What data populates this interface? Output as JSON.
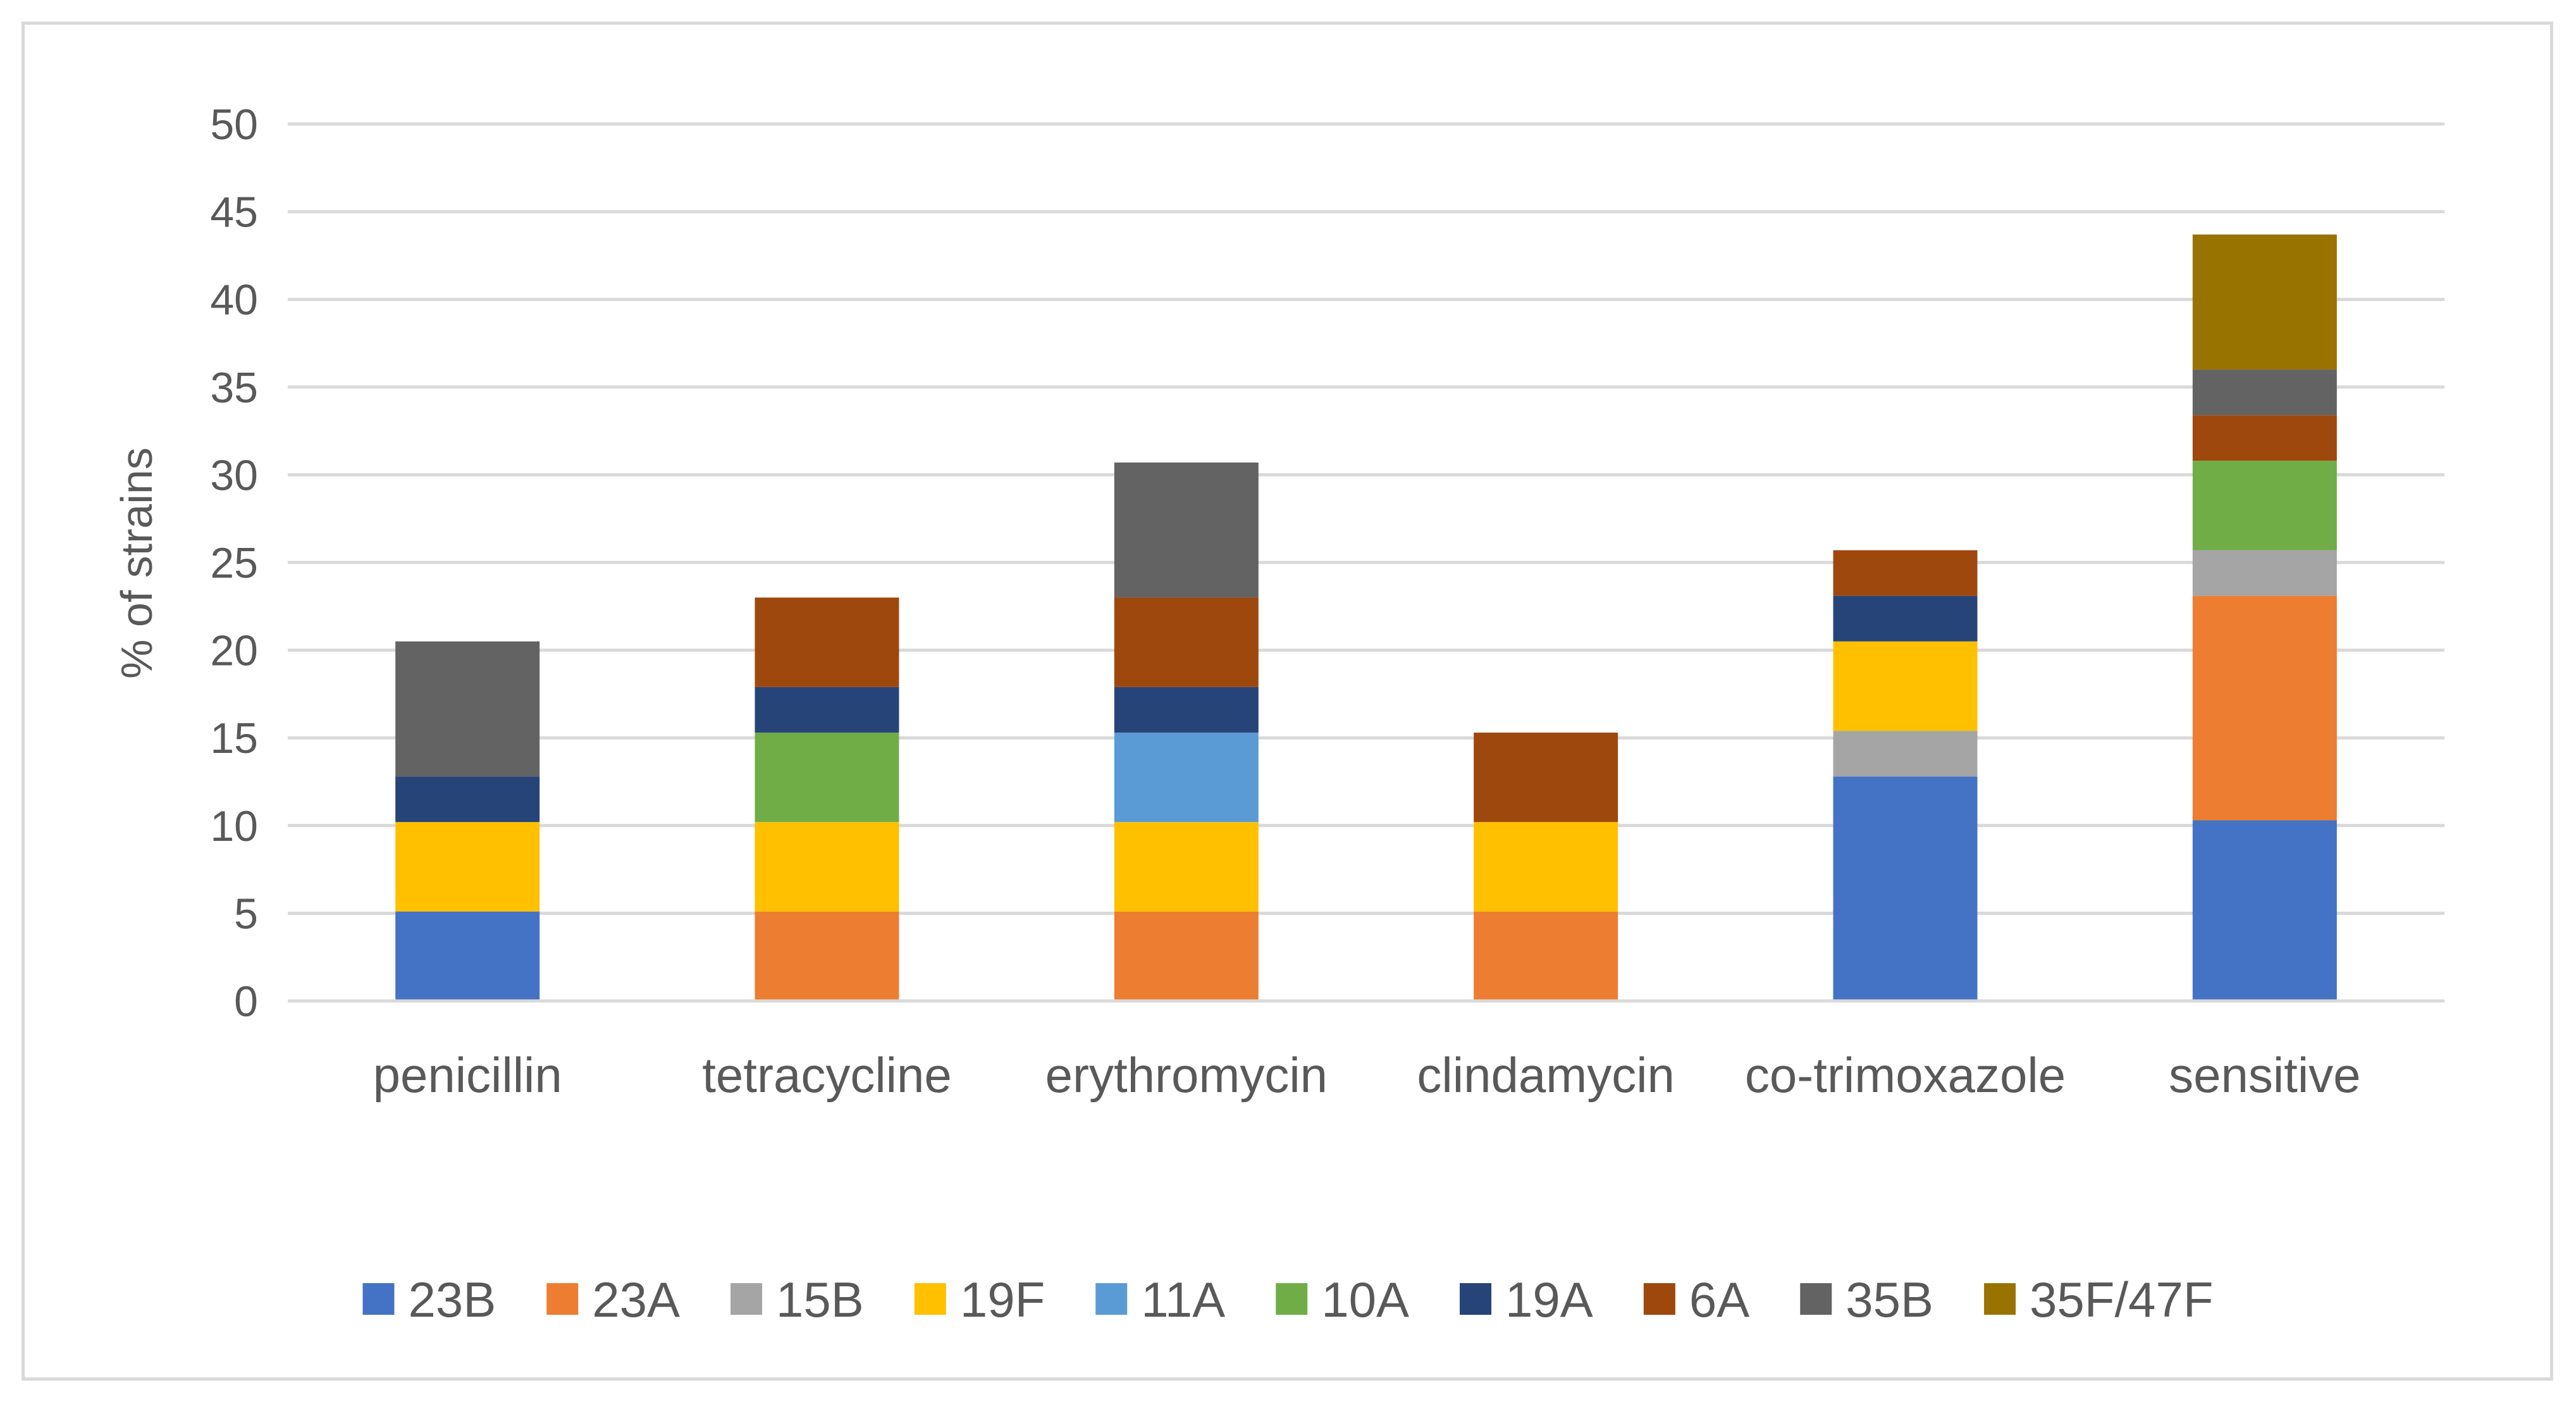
{
  "chart_data": {
    "type": "bar",
    "stacked": true,
    "title": "",
    "xlabel": "",
    "ylabel": "% of strains",
    "ylim": [
      0,
      50
    ],
    "yticks": [
      0,
      5,
      10,
      15,
      20,
      25,
      30,
      35,
      40,
      45,
      50
    ],
    "grid": true,
    "legend_position": "bottom",
    "categories": [
      "penicillin",
      "tetracycline",
      "erythromycin",
      "clindamycin",
      "co-trimoxazole",
      "sensitive"
    ],
    "series": [
      {
        "name": "23B",
        "color": "#4472c4",
        "values": [
          5.1,
          0,
          0,
          0,
          12.8,
          10.3
        ]
      },
      {
        "name": "23A",
        "color": "#ed7d31",
        "values": [
          0,
          5.1,
          5.1,
          5.1,
          0,
          12.8
        ]
      },
      {
        "name": "15B",
        "color": "#a5a5a5",
        "values": [
          0,
          0,
          0,
          0,
          2.6,
          2.6
        ]
      },
      {
        "name": "19F",
        "color": "#ffc000",
        "values": [
          5.1,
          5.1,
          5.1,
          5.1,
          5.1,
          0
        ]
      },
      {
        "name": "11A",
        "color": "#5b9bd5",
        "values": [
          0,
          0,
          5.1,
          0,
          0,
          0
        ]
      },
      {
        "name": "10A",
        "color": "#70ad47",
        "values": [
          0,
          5.1,
          0,
          0,
          0,
          5.1
        ]
      },
      {
        "name": "19A",
        "color": "#264478",
        "values": [
          2.6,
          2.6,
          2.6,
          0,
          2.6,
          0
        ]
      },
      {
        "name": "6A",
        "color": "#9e480e",
        "values": [
          0,
          5.1,
          5.1,
          5.1,
          2.6,
          2.6
        ]
      },
      {
        "name": "35B",
        "color": "#636363",
        "values": [
          7.7,
          0,
          7.7,
          0,
          0,
          2.6
        ]
      },
      {
        "name": "35F/47F",
        "color": "#997300",
        "values": [
          0,
          0,
          0,
          0,
          0,
          7.7
        ]
      }
    ]
  }
}
